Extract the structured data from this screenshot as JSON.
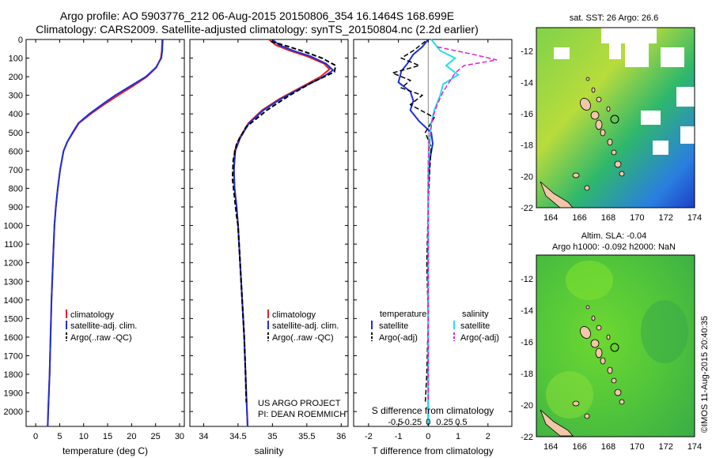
{
  "header": {
    "line1": "Argo profile: AO 5903776_212 06-Aug-2015 20150806_354 16.1464S 168.699E",
    "line2": "Climatology: CARS2009. Satellite-adjusted climatology: synTS_20150804.nc (2.2d earlier)"
  },
  "credit": {
    "project": "US ARGO PROJECT",
    "pi": "PI: DEAN ROEMMICH",
    "imos": "©IMOS 11-Aug-2015 20:40:35"
  },
  "colors": {
    "climatology": "#e8201c",
    "satellite": "#1c2fd8",
    "argo": "#000000",
    "sat_salinity": "#22e0e8",
    "argo_salinity": "#e020d8"
  },
  "chart_data": [
    {
      "type": "line",
      "name": "temperature-profile",
      "xlabel": "temperature (deg C)",
      "ylabel": "",
      "xlim": [
        -2,
        31
      ],
      "ylim": [
        2080,
        0
      ],
      "xticks": [
        0,
        5,
        10,
        15,
        20,
        25,
        30
      ],
      "yticks": [
        0,
        100,
        200,
        300,
        400,
        500,
        600,
        700,
        800,
        900,
        1000,
        1100,
        1200,
        1300,
        1400,
        1500,
        1600,
        1700,
        1800,
        1900,
        2000
      ],
      "legend": [
        "climatology",
        "satellite-adj. clim.",
        "Argo(..raw -QC)"
      ],
      "series": [
        {
          "name": "climatology",
          "points": [
            [
              26.4,
              0
            ],
            [
              26.3,
              60
            ],
            [
              26.1,
              100
            ],
            [
              25.2,
              150
            ],
            [
              23.2,
              200
            ],
            [
              20.3,
              250
            ],
            [
              17.2,
              300
            ],
            [
              14.2,
              350
            ],
            [
              11.5,
              400
            ],
            [
              9.0,
              450
            ],
            [
              7.8,
              500
            ],
            [
              6.6,
              550
            ],
            [
              5.8,
              600
            ],
            [
              5.1,
              700
            ],
            [
              4.6,
              800
            ],
            [
              4.2,
              900
            ],
            [
              3.9,
              1000
            ],
            [
              3.6,
              1200
            ],
            [
              3.3,
              1400
            ],
            [
              3.1,
              1600
            ],
            [
              2.9,
              1800
            ],
            [
              2.6,
              2000
            ],
            [
              2.5,
              2080
            ]
          ]
        },
        {
          "name": "satellite-adj. clim.",
          "points": [
            [
              26.5,
              0
            ],
            [
              26.4,
              60
            ],
            [
              26.2,
              100
            ],
            [
              25.1,
              150
            ],
            [
              23.0,
              200
            ],
            [
              19.8,
              250
            ],
            [
              16.6,
              300
            ],
            [
              13.8,
              350
            ],
            [
              11.2,
              400
            ],
            [
              8.9,
              450
            ],
            [
              7.7,
              500
            ],
            [
              6.6,
              550
            ],
            [
              5.8,
              600
            ],
            [
              5.1,
              700
            ],
            [
              4.6,
              800
            ],
            [
              4.2,
              900
            ],
            [
              3.9,
              1000
            ],
            [
              3.6,
              1200
            ],
            [
              3.3,
              1400
            ],
            [
              3.1,
              1600
            ],
            [
              2.9,
              1800
            ],
            [
              2.6,
              2000
            ],
            [
              2.5,
              2080
            ]
          ]
        }
      ]
    },
    {
      "type": "line",
      "name": "salinity-profile",
      "xlabel": "salinity",
      "xlim": [
        33.8,
        36.1
      ],
      "ylim": [
        2080,
        0
      ],
      "xticks": [
        34,
        34.5,
        35,
        35.5,
        36
      ],
      "legend": [
        "climatology",
        "satellite-adj. clim.",
        "Argo(..raw -QC)"
      ],
      "series": [
        {
          "name": "climatology",
          "points": [
            [
              34.95,
              0
            ],
            [
              35.05,
              30
            ],
            [
              35.25,
              60
            ],
            [
              35.5,
              90
            ],
            [
              35.75,
              130
            ],
            [
              35.83,
              160
            ],
            [
              35.7,
              200
            ],
            [
              35.4,
              260
            ],
            [
              35.1,
              320
            ],
            [
              34.85,
              380
            ],
            [
              34.65,
              450
            ],
            [
              34.52,
              530
            ],
            [
              34.45,
              600
            ],
            [
              34.44,
              700
            ],
            [
              34.45,
              800
            ],
            [
              34.48,
              900
            ],
            [
              34.5,
              1000
            ],
            [
              34.53,
              1200
            ],
            [
              34.56,
              1400
            ],
            [
              34.59,
              1600
            ],
            [
              34.61,
              1800
            ],
            [
              34.63,
              2000
            ],
            [
              34.64,
              2080
            ]
          ]
        },
        {
          "name": "satellite-adj. clim.",
          "points": [
            [
              35.0,
              0
            ],
            [
              35.1,
              30
            ],
            [
              35.3,
              60
            ],
            [
              35.55,
              90
            ],
            [
              35.78,
              130
            ],
            [
              35.88,
              165
            ],
            [
              35.72,
              205
            ],
            [
              35.42,
              260
            ],
            [
              35.12,
              320
            ],
            [
              34.87,
              380
            ],
            [
              34.66,
              450
            ],
            [
              34.53,
              530
            ],
            [
              34.46,
              600
            ],
            [
              34.44,
              700
            ],
            [
              34.45,
              800
            ],
            [
              34.48,
              900
            ],
            [
              34.5,
              1000
            ],
            [
              34.53,
              1200
            ],
            [
              34.56,
              1400
            ],
            [
              34.59,
              1600
            ],
            [
              34.61,
              1800
            ],
            [
              34.63,
              2000
            ],
            [
              34.64,
              2080
            ]
          ]
        },
        {
          "name": "Argo(..raw -QC)",
          "points": [
            [
              34.98,
              10
            ],
            [
              35.25,
              40
            ],
            [
              35.5,
              70
            ],
            [
              35.72,
              100
            ],
            [
              35.92,
              140
            ],
            [
              35.9,
              175
            ],
            [
              35.58,
              230
            ],
            [
              35.25,
              300
            ],
            [
              34.92,
              380
            ],
            [
              34.62,
              470
            ],
            [
              34.48,
              560
            ],
            [
              34.43,
              650
            ],
            [
              34.42,
              750
            ],
            [
              34.45,
              850
            ],
            [
              34.48,
              950
            ],
            [
              34.5,
              1000
            ],
            [
              34.53,
              1200
            ],
            [
              34.56,
              1400
            ],
            [
              34.59,
              1600
            ],
            [
              34.61,
              1800
            ],
            [
              34.62,
              1950
            ]
          ]
        }
      ]
    },
    {
      "type": "line",
      "name": "difference-profile",
      "xlabel": "T difference from climatology",
      "x2label": "S difference from climatology",
      "xlim": [
        -2.5,
        2.8
      ],
      "ylim": [
        2080,
        0
      ],
      "xticks": [
        -2,
        -1,
        0,
        1,
        2
      ],
      "x2ticks": [
        "-0.5",
        "-0.25",
        "0",
        "0.25",
        "0.5"
      ],
      "legend_temperature": [
        "temperature",
        "satellite",
        "Argo(-adj)"
      ],
      "legend_salinity": [
        "salinity",
        "satellite",
        "Argo(-adj)"
      ],
      "series": [
        {
          "name": "temperature satellite",
          "points": [
            [
              0,
              0
            ],
            [
              -0.2,
              40
            ],
            [
              -0.5,
              80
            ],
            [
              -0.7,
              130
            ],
            [
              -0.9,
              170
            ],
            [
              -1.0,
              230
            ],
            [
              -0.6,
              280
            ],
            [
              -0.5,
              330
            ],
            [
              -0.6,
              380
            ],
            [
              -0.3,
              440
            ],
            [
              0.1,
              500
            ],
            [
              0.15,
              560
            ],
            [
              0.05,
              650
            ],
            [
              0,
              800
            ],
            [
              0,
              1000
            ],
            [
              0,
              1400
            ],
            [
              0,
              1800
            ],
            [
              0,
              2080
            ]
          ]
        },
        {
          "name": "temperature Argo(-adj)",
          "points": [
            [
              -0.1,
              10
            ],
            [
              -0.5,
              60
            ],
            [
              -0.9,
              100
            ],
            [
              -0.3,
              140
            ],
            [
              -1.2,
              180
            ],
            [
              -0.6,
              220
            ],
            [
              -0.9,
              260
            ],
            [
              -0.2,
              300
            ],
            [
              -0.6,
              350
            ],
            [
              0.2,
              420
            ],
            [
              -0.1,
              500
            ],
            [
              0.1,
              580
            ],
            [
              0.05,
              700
            ],
            [
              0,
              900
            ],
            [
              -0.05,
              1200
            ],
            [
              0,
              1500
            ],
            [
              -0.05,
              1800
            ],
            [
              -0.1,
              1950
            ]
          ]
        },
        {
          "name": "salinity satellite",
          "points": [
            [
              0.1,
              0
            ],
            [
              0.4,
              60
            ],
            [
              0.9,
              100
            ],
            [
              0.6,
              140
            ],
            [
              1.0,
              190
            ],
            [
              0.5,
              240
            ],
            [
              0.4,
              300
            ],
            [
              0.2,
              380
            ],
            [
              0.1,
              450
            ],
            [
              0.05,
              550
            ],
            [
              0,
              700
            ],
            [
              0,
              1000
            ],
            [
              0,
              1400
            ],
            [
              0,
              1800
            ],
            [
              0,
              2080
            ]
          ]
        },
        {
          "name": "salinity Argo(-adj)",
          "points": [
            [
              0.3,
              40
            ],
            [
              1.5,
              80
            ],
            [
              2.3,
              110
            ],
            [
              1.2,
              140
            ],
            [
              0.9,
              180
            ],
            [
              0.7,
              230
            ],
            [
              0.5,
              280
            ],
            [
              0.3,
              350
            ],
            [
              0.15,
              420
            ],
            [
              0.05,
              520
            ],
            [
              0,
              650
            ],
            [
              0,
              900
            ],
            [
              0,
              1200
            ],
            [
              0,
              1600
            ],
            [
              0,
              1950
            ]
          ]
        }
      ]
    },
    {
      "type": "heatmap",
      "name": "sst-map",
      "title": "sat. SST: 26 Argo: 26.6",
      "xticks": [
        164,
        166,
        168,
        170,
        172,
        174
      ],
      "yticks": [
        -12,
        -14,
        -16,
        -18,
        -20,
        -22
      ],
      "xlim": [
        163,
        174
      ],
      "ylim": [
        -22,
        -10.5
      ],
      "argo_position": [
        168.7,
        -16.15
      ]
    },
    {
      "type": "heatmap",
      "name": "sla-map",
      "title": "Altim. SLA: -0.04",
      "subtitle": "Argo h1000: -0.092 h2000: NaN",
      "xticks": [
        164,
        166,
        168,
        170,
        172,
        174
      ],
      "yticks": [
        -12,
        -14,
        -16,
        -18,
        -20,
        -22
      ],
      "xlim": [
        163,
        174
      ],
      "ylim": [
        -22,
        -10.5
      ],
      "argo_position": [
        168.7,
        -16.15
      ]
    }
  ]
}
